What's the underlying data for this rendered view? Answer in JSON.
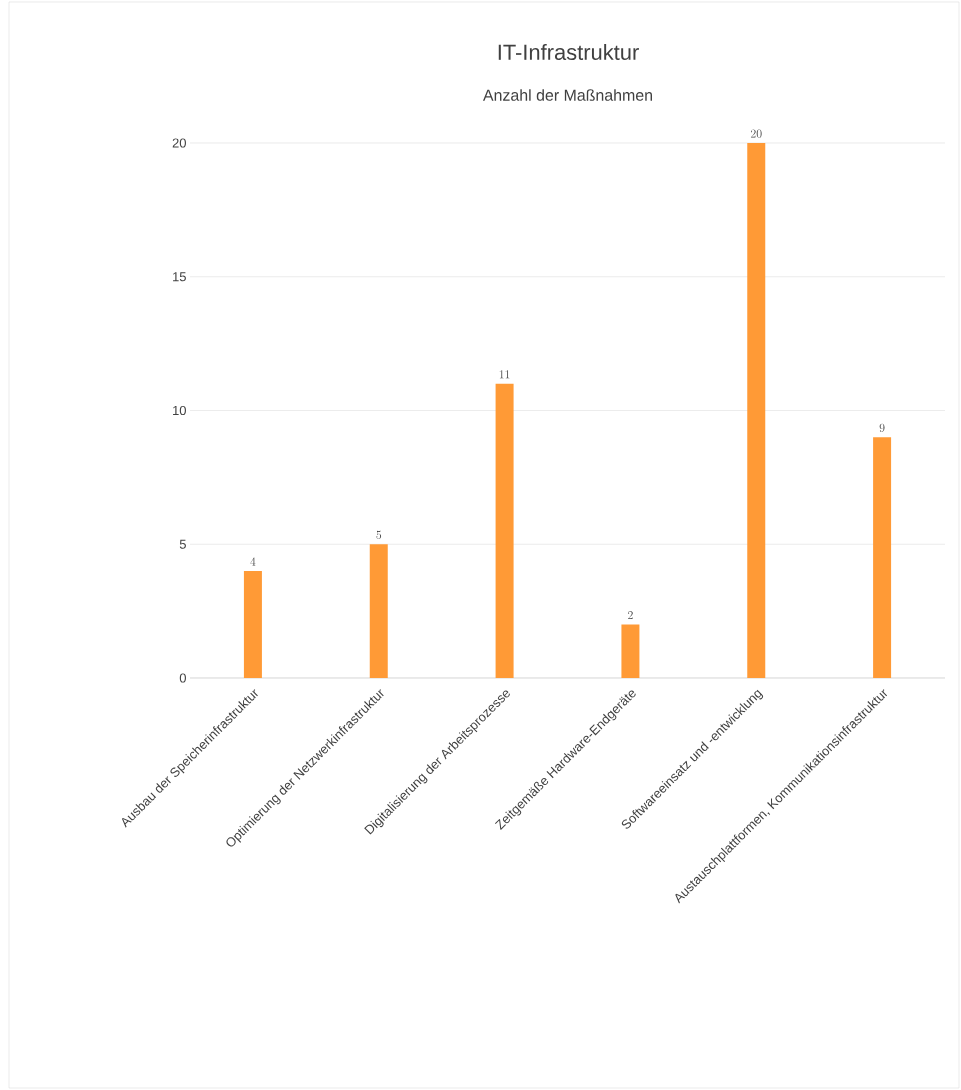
{
  "chart_data": {
    "type": "bar",
    "title": "IT-Infrastruktur",
    "subtitle": "Anzahl der Maßnahmen",
    "categories": [
      "Ausbau der Speicherinfrastruktur",
      "Optimierung der Netzwerkinfrastruktur",
      "Digitalisierung der Arbeitsprozesse",
      "Zeitgemäße Hardware-Endgeräte",
      "Softwareeinsatz und -entwicklung",
      "Austauschplattformen, Kommunikationsinfrastruktur"
    ],
    "values": [
      4,
      5,
      11,
      2,
      20,
      9
    ],
    "color": "#ff9a36",
    "ylim": [
      0,
      20
    ],
    "yticks": [
      0,
      5,
      10,
      15,
      20
    ],
    "grid": "y",
    "data_labels": true
  }
}
